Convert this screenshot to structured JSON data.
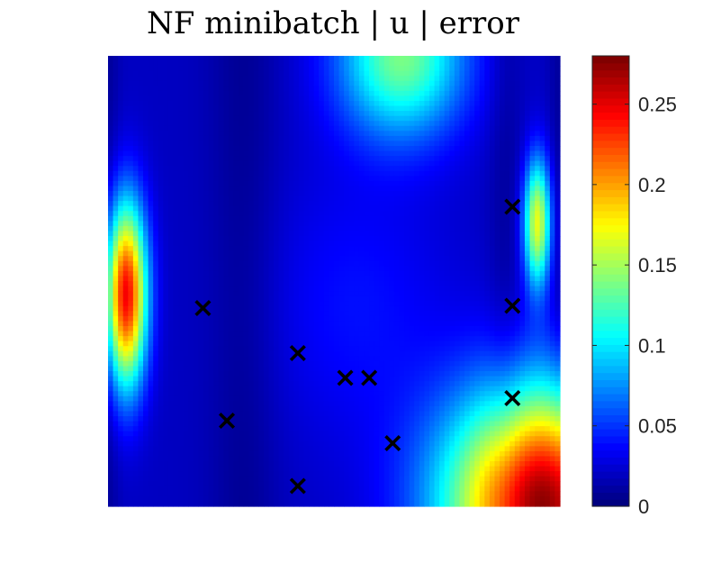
{
  "chart_data": {
    "type": "heatmap",
    "title": "NF minibatch | u | error",
    "xlabel": "",
    "ylabel": "",
    "colormap": "jet",
    "colorbar": {
      "min": 0,
      "max": 0.28,
      "ticks": [
        0,
        0.05,
        0.1,
        0.15,
        0.2,
        0.25
      ],
      "tick_labels": [
        "0",
        "0.05",
        "0.1",
        "0.15",
        "0.2",
        "0.25"
      ]
    },
    "field_peaks": [
      {
        "x": 0.04,
        "y": 0.47,
        "error": 0.23
      },
      {
        "x": 0.96,
        "y": 0.08,
        "error": 0.27
      },
      {
        "x": 0.95,
        "y": 0.62,
        "error": 0.16
      },
      {
        "x": 0.65,
        "y": 1.0,
        "error": 0.12
      }
    ],
    "markers": {
      "symbol": "x",
      "color": "#000000",
      "points": [
        {
          "x": 0.21,
          "y": 0.44
        },
        {
          "x": 0.42,
          "y": 0.34
        },
        {
          "x": 0.525,
          "y": 0.285
        },
        {
          "x": 0.578,
          "y": 0.285
        },
        {
          "x": 0.263,
          "y": 0.19
        },
        {
          "x": 0.63,
          "y": 0.14
        },
        {
          "x": 0.42,
          "y": 0.045
        },
        {
          "x": 0.895,
          "y": 0.665
        },
        {
          "x": 0.895,
          "y": 0.445
        },
        {
          "x": 0.895,
          "y": 0.24
        }
      ]
    }
  }
}
